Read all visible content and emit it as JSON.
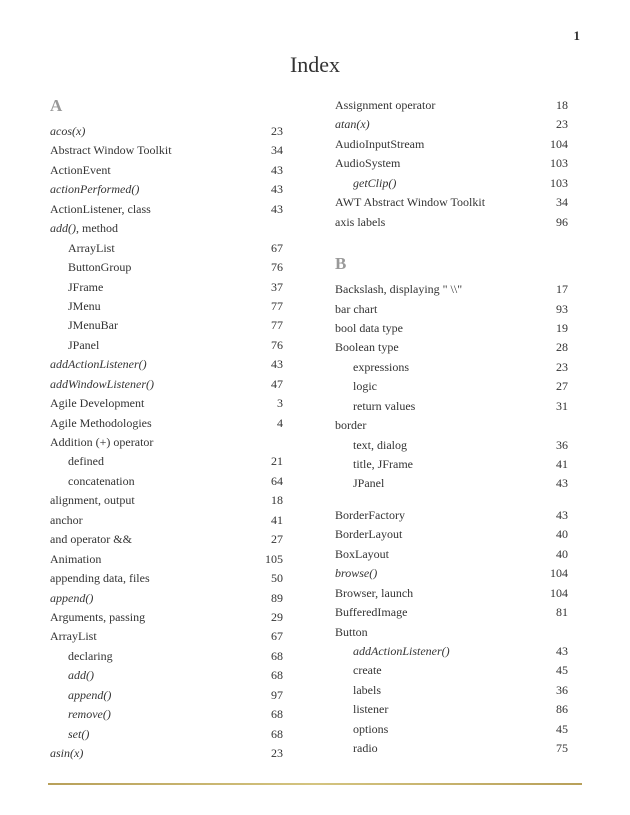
{
  "page_number": "1",
  "title": "Index",
  "colors": {
    "text": "#333333",
    "letter": "#999999",
    "background": "#ffffff",
    "rule": "#b8a05a"
  },
  "typography": {
    "body_family": "Palatino Linotype, Book Antiqua, Palatino, Georgia, serif",
    "body_size_pt": 9,
    "title_size_pt": 17,
    "letter_size_pt": 13
  },
  "columns": [
    {
      "sections": [
        {
          "letter": "A",
          "entries": [
            {
              "term": "acos(x)",
              "italic": true,
              "page": "23"
            },
            {
              "term": "Abstract Window Toolkit",
              "page": "34"
            },
            {
              "term": "ActionEvent",
              "page": "43"
            },
            {
              "term": "actionPerformed()",
              "italic": true,
              "page": "43"
            },
            {
              "term": "ActionListener, class",
              "page": "43"
            },
            {
              "term": "add(), method",
              "italic_prefix": "add()",
              "plain_suffix": ", method"
            },
            {
              "term": "ArrayList",
              "indent": 1,
              "page": "67"
            },
            {
              "term": "ButtonGroup",
              "indent": 1,
              "page": "76"
            },
            {
              "term": "JFrame",
              "indent": 1,
              "page": "37"
            },
            {
              "term": "JMenu",
              "indent": 1,
              "page": "77"
            },
            {
              "term": "JMenuBar",
              "indent": 1,
              "page": "77"
            },
            {
              "term": "JPanel",
              "indent": 1,
              "page": "76"
            },
            {
              "term": "addActionListener()",
              "italic": true,
              "page": "43"
            },
            {
              "term": "addWindowListener()",
              "italic": true,
              "page": "47"
            },
            {
              "term": "Agile Development",
              "page": "3"
            },
            {
              "term": "Agile Methodologies",
              "page": "4"
            },
            {
              "term": "Addition (+) operator"
            },
            {
              "term": "defined",
              "indent": 1,
              "page": "21"
            },
            {
              "term": "concatenation",
              "indent": 1,
              "page": "64"
            },
            {
              "term": "alignment, output",
              "page": "18"
            },
            {
              "term": "anchor",
              "page": "41"
            },
            {
              "term": "and operator &&",
              "page": "27"
            },
            {
              "term": "Animation",
              "page": "105"
            },
            {
              "term": "appending data, files",
              "page": "50"
            },
            {
              "term": "append()",
              "italic": true,
              "page": "89"
            },
            {
              "term": "Arguments, passing",
              "page": "29"
            },
            {
              "term": "ArrayList",
              "page": "67"
            },
            {
              "term": "declaring",
              "indent": 1,
              "page": "68"
            },
            {
              "term": "add()",
              "italic": true,
              "indent": 1,
              "page": "68"
            },
            {
              "term": "append()",
              "italic": true,
              "indent": 1,
              "page": "97"
            },
            {
              "term": "remove()",
              "italic": true,
              "indent": 1,
              "page": "68"
            },
            {
              "term": "set()",
              "italic": true,
              "indent": 1,
              "page": "68"
            },
            {
              "term": "asin(x)",
              "italic": true,
              "page": "23"
            }
          ]
        }
      ]
    },
    {
      "sections": [
        {
          "letter": null,
          "entries": [
            {
              "term": "Assignment operator",
              "page": "18"
            },
            {
              "term": "atan(x)",
              "italic": true,
              "page": "23"
            },
            {
              "term": "AudioInputStream",
              "page": "104"
            },
            {
              "term": "AudioSystem",
              "page": "103"
            },
            {
              "term": "getClip()",
              "italic": true,
              "indent": 1,
              "page": "103"
            },
            {
              "term": "AWT Abstract Window Toolkit",
              "page": "34"
            },
            {
              "term": "axis labels",
              "page": "96"
            }
          ]
        },
        {
          "letter": "B",
          "gap_before": true,
          "entries": [
            {
              "term": "Backslash, displaying \" \\\\\"",
              "page": "17"
            },
            {
              "term": "bar chart",
              "page": "93"
            },
            {
              "term": "bool data type",
              "page": "19"
            },
            {
              "term": "Boolean type",
              "page": "28"
            },
            {
              "term": "expressions",
              "indent": 1,
              "page": "23"
            },
            {
              "term": "logic",
              "indent": 1,
              "page": "27"
            },
            {
              "term": "return values",
              "indent": 1,
              "page": "31"
            },
            {
              "term": "border"
            },
            {
              "term": "text, dialog",
              "indent": 1,
              "page": "36"
            },
            {
              "term": "title, JFrame",
              "indent": 1,
              "page": "41"
            },
            {
              "term": "JPanel",
              "indent": 1,
              "page": "43"
            },
            {
              "gap": true
            },
            {
              "term": "BorderFactory",
              "page": "43"
            },
            {
              "term": "BorderLayout",
              "page": "40"
            },
            {
              "term": "BoxLayout",
              "page": "40"
            },
            {
              "term": "browse()",
              "italic": true,
              "page": "104"
            },
            {
              "term": "Browser, launch",
              "page": "104"
            },
            {
              "term": "BufferedImage",
              "page": "81"
            },
            {
              "term": "Button"
            },
            {
              "term": "addActionListener()",
              "italic": true,
              "indent": 1,
              "page": "43"
            },
            {
              "term": "create",
              "indent": 1,
              "page": "45"
            },
            {
              "term": "labels",
              "indent": 1,
              "page": "36"
            },
            {
              "term": "listener",
              "indent": 1,
              "page": "86"
            },
            {
              "term": "options",
              "indent": 1,
              "page": "45"
            },
            {
              "term": "radio",
              "indent": 1,
              "page": "75"
            }
          ]
        }
      ]
    }
  ]
}
